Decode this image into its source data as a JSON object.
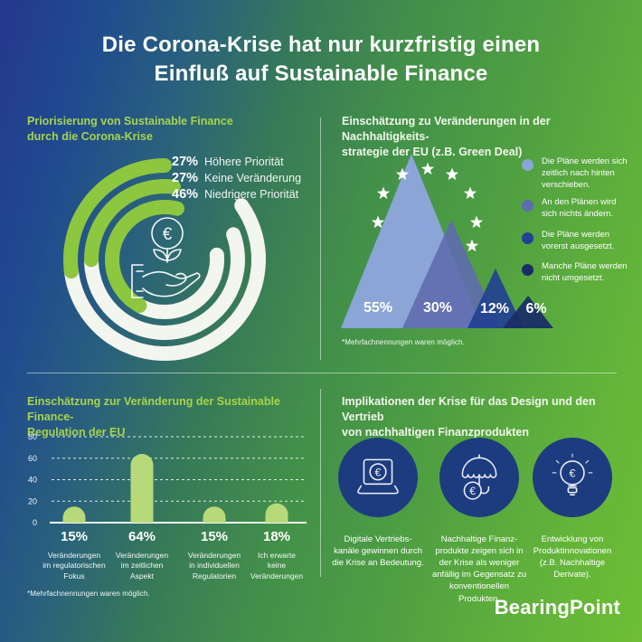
{
  "title": "Die Corona-Krise hat nur kurzfristig einen\nEinfluß auf Sustainable Finance",
  "brand": {
    "logo_text": "BearingPoint"
  },
  "icons": {
    "euro": "€"
  },
  "colors": {
    "background_top_left": "#26388c",
    "background_bottom_right": "#6fbe35",
    "heading_green": "#a9d34c",
    "heading_light": "#f2f6ec",
    "ring_green": "#8dc63f",
    "ring_track_white": "#f3f5ef",
    "bar_green": "#b8d97a",
    "circle_navy": "#1d3c80",
    "divider": "rgba(255,255,255,0.5)"
  },
  "panels": {
    "top_left": {
      "heading": "Priorisierung von Sustainable Finance\ndurch die Corona-Krise"
    },
    "top_right": {
      "heading": "Einschätzung zu Veränderungen in der Nachhaltigkeits-\nstrategie der EU (z.B. Green Deal)",
      "footnote": "*Mehrfachnennungen waren möglich."
    },
    "bottom_left": {
      "heading": "Einschätzung zur Veränderung der Sustainable Finance-\nRegulation der EU",
      "footnote": "*Mehrfachnennungen waren möglich."
    },
    "bottom_right": {
      "heading": "Implikationen der Krise für das Design und den Vertrieb\nvon nachhaltigen Finanzprodukten",
      "items": [
        {
          "icon": "laptop-euro",
          "caption": "Digitale Vertriebs-\nkanäle gewinnen durch\ndie Krise an Bedeutung."
        },
        {
          "icon": "umbrella-euro",
          "caption": "Nachhaltige Finanz-\nprodukte zeigen sich in\nder Krise als weniger\nanfällig im Gegensatz zu\nkonventionellen\nProdukten."
        },
        {
          "icon": "lightbulb-euro",
          "caption": "Entwicklung von\nProduktinnovationen\n(z.B. Nachhaltige\nDerivate)."
        }
      ]
    }
  },
  "chart_data": [
    {
      "type": "donut-rings",
      "title": "Priorisierung von Sustainable Finance durch die Corona-Krise",
      "unit": "%",
      "ring_color_active": "#8dc63f",
      "ring_color_rest": "#f3f5ef",
      "series": [
        {
          "label": "Höhere Priorität",
          "value": 27,
          "display": "27%"
        },
        {
          "label": "Keine Veränderung",
          "value": 27,
          "display": "27%"
        },
        {
          "label": "Niedrigere Priorität",
          "value": 46,
          "display": "46%"
        }
      ]
    },
    {
      "type": "bar",
      "variant": "triangle-mountains",
      "title": "Einschätzung zu Veränderungen in der Nachhaltigkeitsstrategie der EU (z.B. Green Deal)",
      "values": [
        55,
        30,
        12,
        6
      ],
      "value_labels": [
        "55%",
        "30%",
        "12%",
        "6%"
      ],
      "colors": [
        "#8ba6d6",
        "#5f6cae",
        "#234191",
        "#1b2d66"
      ],
      "categories": [
        "Die Pläne werden sich\nzeitlich nach hinten\nverschieben.",
        "An den Plänen wird\nsich nichts ändern.",
        "Die Pläne werden\nvorerst ausgesetzt.",
        "Manche Pläne werden\nnicht umgesetzt."
      ],
      "legend_position": "right",
      "decoration": "eu-stars",
      "footnote": "*Mehrfachnennungen waren möglich."
    },
    {
      "type": "bar",
      "title": "Einschätzung zur Veränderung der Sustainable Finance-Regulation der EU",
      "bar_color": "#b8d97a",
      "values": [
        15,
        64,
        15,
        18
      ],
      "value_labels": [
        "15%",
        "64%",
        "15%",
        "18%"
      ],
      "categories": [
        "Veränderungen\nim regulatorischen\nFokus",
        "Veränderungen\nim zeitlichen\nAspekt",
        "Veränderungen\nin individuellen\nRegulatorien",
        "Ich erwarte\nkeine\nVeränderungen"
      ],
      "ylim": [
        0,
        80
      ],
      "yticks": [
        0,
        20,
        40,
        60,
        80
      ],
      "grid": "dashed",
      "footnote": "*Mehrfachnennungen waren möglich."
    }
  ]
}
